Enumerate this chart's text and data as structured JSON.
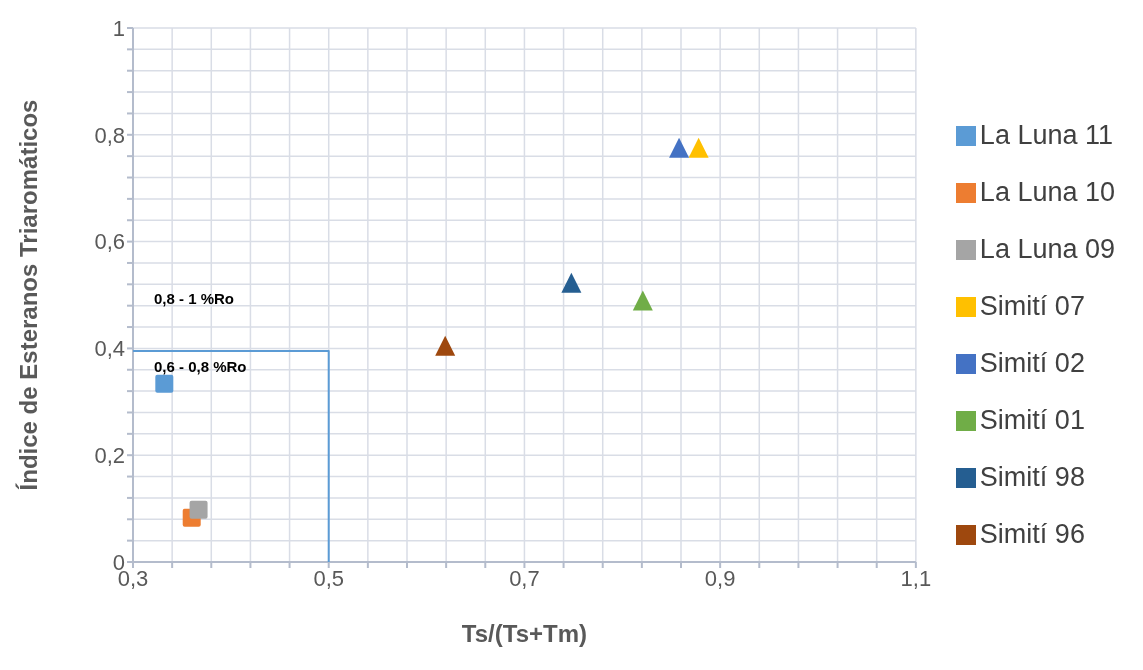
{
  "chart_data": {
    "type": "scatter",
    "xlabel": "Ts/(Ts+Tm)",
    "ylabel": "Índice de Esteranos Triaromáticos",
    "xlim": [
      0.3,
      1.1
    ],
    "ylim": [
      0,
      1
    ],
    "xticks": [
      {
        "value": 0.3,
        "label": "0,3"
      },
      {
        "value": 0.34,
        "label": null
      },
      {
        "value": 0.38,
        "label": null
      },
      {
        "value": 0.42,
        "label": null
      },
      {
        "value": 0.46,
        "label": null
      },
      {
        "value": 0.5,
        "label": "0,5"
      },
      {
        "value": 0.54,
        "label": null
      },
      {
        "value": 0.58,
        "label": null
      },
      {
        "value": 0.62,
        "label": null
      },
      {
        "value": 0.66,
        "label": null
      },
      {
        "value": 0.7,
        "label": "0,7"
      },
      {
        "value": 0.74,
        "label": null
      },
      {
        "value": 0.78,
        "label": null
      },
      {
        "value": 0.82,
        "label": null
      },
      {
        "value": 0.86,
        "label": null
      },
      {
        "value": 0.9,
        "label": "0,9"
      },
      {
        "value": 0.94,
        "label": null
      },
      {
        "value": 0.98,
        "label": null
      },
      {
        "value": 1.02,
        "label": null
      },
      {
        "value": 1.06,
        "label": null
      },
      {
        "value": 1.1,
        "label": "1,1"
      }
    ],
    "yticks": [
      0,
      {
        "value": 0.04,
        "label": null
      },
      {
        "value": 0.08,
        "label": null
      },
      {
        "value": 0.12,
        "label": null
      },
      {
        "value": 0.16,
        "label": null
      },
      {
        "value": 0.2,
        "label": "0,2"
      },
      {
        "value": 0.24,
        "label": null
      },
      {
        "value": 0.28,
        "label": null
      },
      {
        "value": 0.32,
        "label": null
      },
      {
        "value": 0.36,
        "label": null
      },
      {
        "value": 0.4,
        "label": "0,4"
      },
      {
        "value": 0.44,
        "label": null
      },
      {
        "value": 0.48,
        "label": null
      },
      {
        "value": 0.52,
        "label": null
      },
      {
        "value": 0.56,
        "label": null
      },
      {
        "value": 0.6,
        "label": "0,6"
      },
      {
        "value": 0.64,
        "label": null
      },
      {
        "value": 0.68,
        "label": null
      },
      {
        "value": 0.72,
        "label": null
      },
      {
        "value": 0.76,
        "label": null
      },
      {
        "value": 0.8,
        "label": "0,8"
      },
      {
        "value": 0.84,
        "label": null
      },
      {
        "value": 0.88,
        "label": null
      },
      {
        "value": 0.92,
        "label": null
      },
      {
        "value": 0.96,
        "label": null
      },
      1
    ],
    "grid": true,
    "legend": "right",
    "series": [
      {
        "name": "La Luna 11",
        "color": "#5b9bd5",
        "marker": "square",
        "x": [
          0.332
        ],
        "values": [
          0.334
        ]
      },
      {
        "name": "La Luna 10",
        "color": "#ed7d31",
        "marker": "square",
        "x": [
          0.36
        ],
        "values": [
          0.083
        ]
      },
      {
        "name": "La Luna 09",
        "color": "#a5a5a5",
        "marker": "square",
        "x": [
          0.367
        ],
        "values": [
          0.098
        ]
      },
      {
        "name": "Simití 07",
        "color": "#ffc000",
        "marker": "triangle",
        "x": [
          0.878
        ],
        "values": [
          0.774
        ]
      },
      {
        "name": "Simití 02",
        "color": "#4472c4",
        "marker": "triangle",
        "x": [
          0.858
        ],
        "values": [
          0.774
        ]
      },
      {
        "name": "Simití 01",
        "color": "#70ad47",
        "marker": "triangle",
        "x": [
          0.821
        ],
        "values": [
          0.488
        ]
      },
      {
        "name": "Simití 98",
        "color": "#255e91",
        "marker": "triangle",
        "x": [
          0.748
        ],
        "values": [
          0.521
        ]
      },
      {
        "name": "Simití 96",
        "color": "#9e480e",
        "marker": "triangle",
        "x": [
          0.619
        ],
        "values": [
          0.403
        ]
      },
      {
        "type": "line",
        "color": "#5b9bd5",
        "marker": "none",
        "line_style": "solid",
        "x": [
          0.3,
          0.5,
          0.5
        ],
        "values": [
          0.395,
          0.395,
          0
        ]
      }
    ],
    "annotations": [
      "0,8 - 1 %Ro",
      "0,6 - 0,8 %Ro"
    ]
  }
}
